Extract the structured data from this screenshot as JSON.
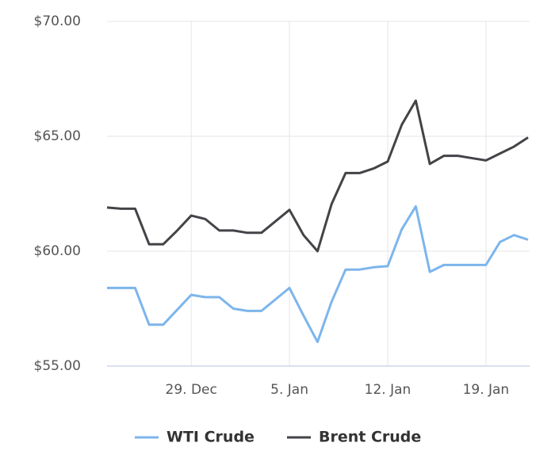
{
  "chart_data": {
    "type": "line",
    "categories": [
      null,
      null,
      null,
      null,
      null,
      null,
      "29. Dec",
      null,
      null,
      null,
      null,
      null,
      null,
      "5. Jan",
      null,
      null,
      null,
      null,
      null,
      null,
      "12. Jan",
      null,
      null,
      null,
      null,
      null,
      null,
      "19. Jan",
      null,
      null,
      null
    ],
    "series": [
      {
        "name": "WTI Crude",
        "color": "#7cb5ec",
        "values": [
          58.4,
          58.4,
          58.4,
          56.8,
          56.8,
          57.45,
          58.1,
          58.0,
          58.0,
          57.5,
          57.4,
          57.4,
          57.9,
          58.4,
          57.2,
          56.05,
          57.8,
          59.2,
          59.2,
          59.3,
          59.35,
          60.95,
          61.95,
          59.1,
          59.4,
          59.4,
          59.4,
          59.4,
          60.4,
          60.7,
          60.5
        ]
      },
      {
        "name": "Brent Crude",
        "color": "#434348",
        "values": [
          61.9,
          61.85,
          61.85,
          60.3,
          60.3,
          60.9,
          61.55,
          61.4,
          60.9,
          60.9,
          60.8,
          60.8,
          61.3,
          61.8,
          60.7,
          60.0,
          62.05,
          63.4,
          63.4,
          63.6,
          63.9,
          65.5,
          66.55,
          63.8,
          64.15,
          64.15,
          64.05,
          63.95,
          64.25,
          64.55,
          64.95
        ]
      }
    ],
    "ylim": [
      55,
      70
    ],
    "yticks": [
      {
        "value": 55,
        "label": "$55.00"
      },
      {
        "value": 60,
        "label": "$60.00"
      },
      {
        "value": 65,
        "label": "$65.00"
      },
      {
        "value": 70,
        "label": "$70.00"
      }
    ],
    "grid": true
  }
}
